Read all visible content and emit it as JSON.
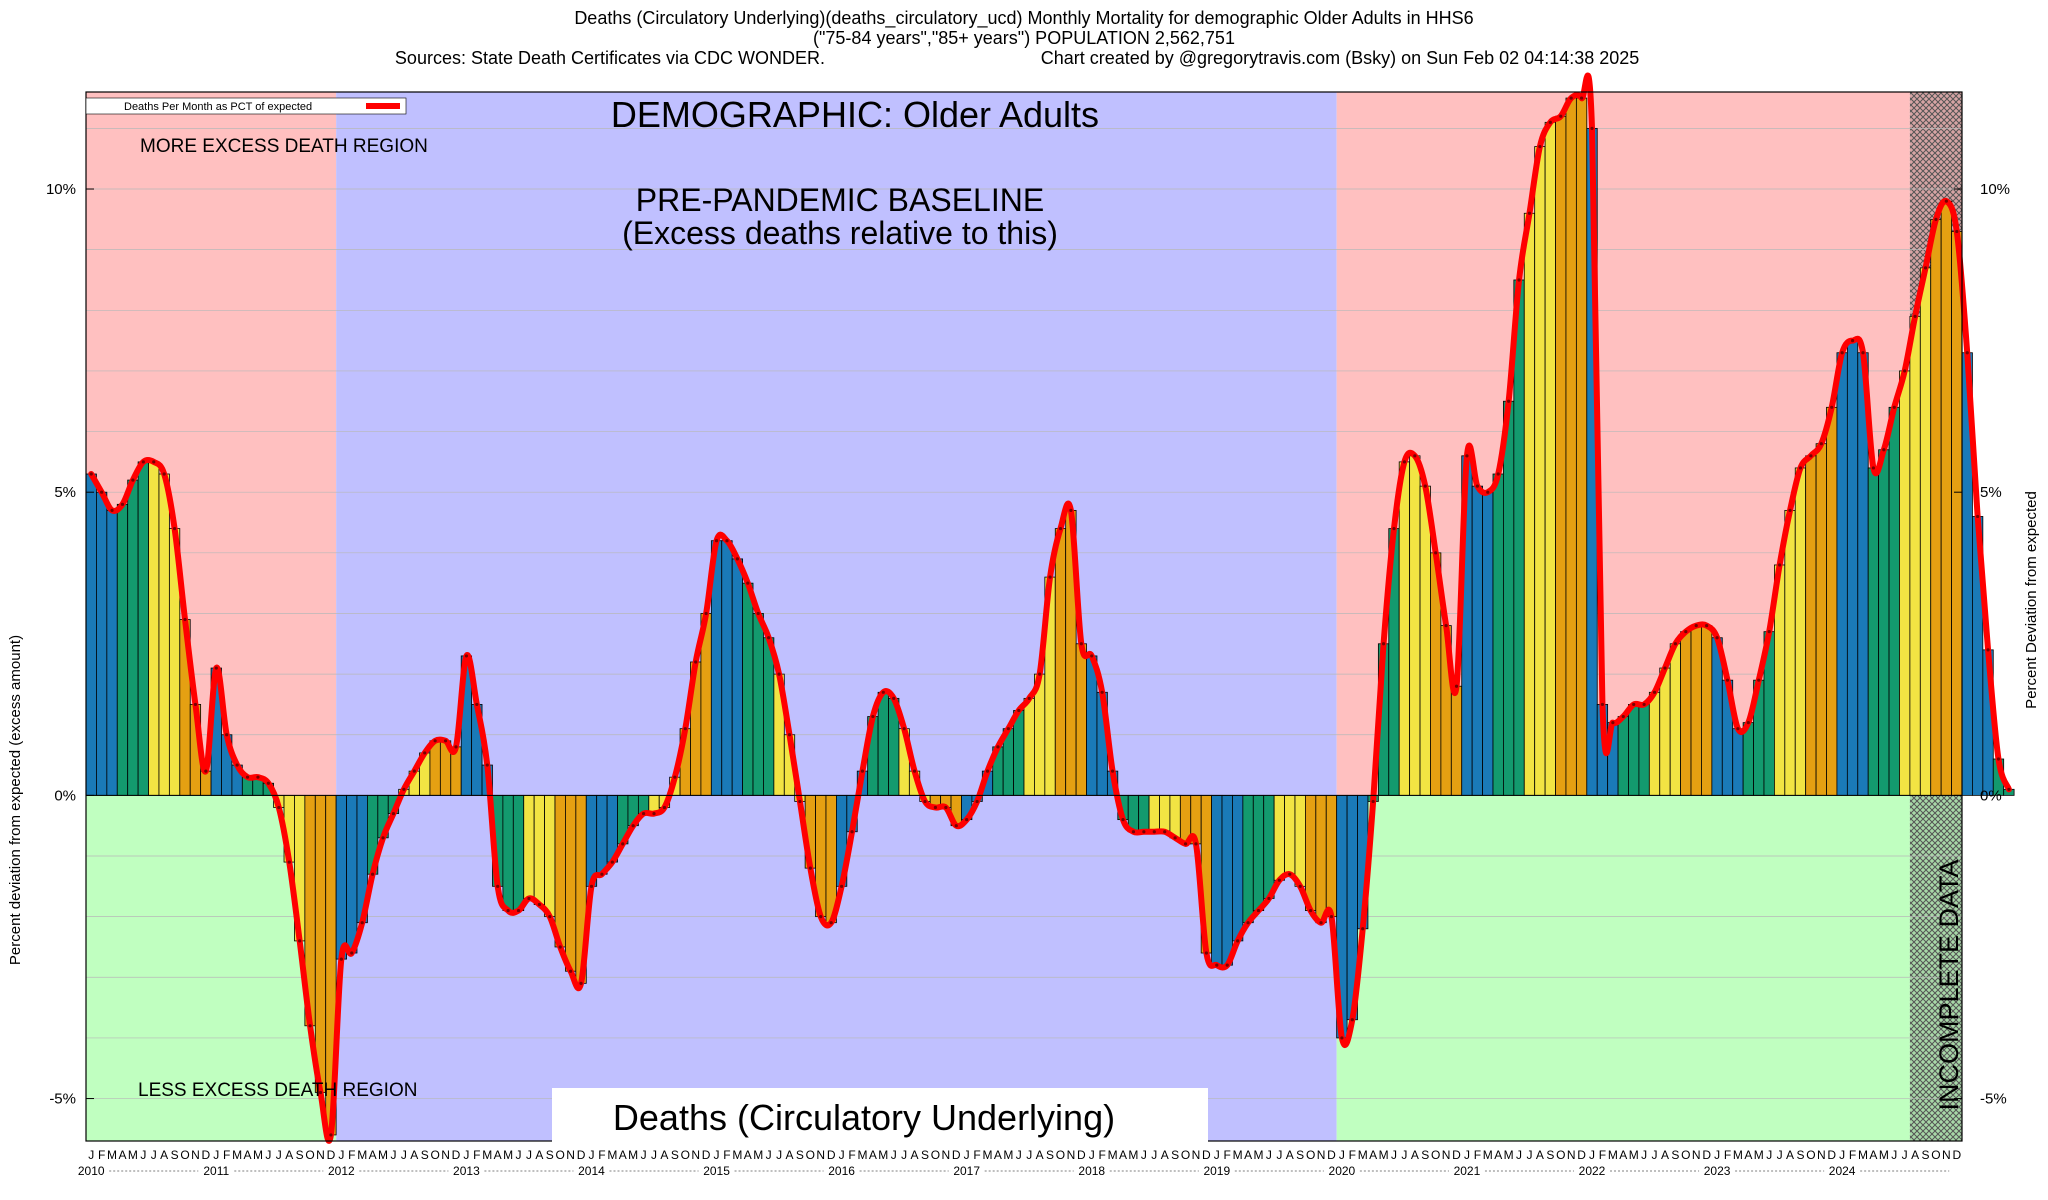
{
  "header": {
    "line1": "Deaths (Circulatory Underlying)(deaths_circulatory_ucd) Monthly Mortality for demographic Older Adults in HHS6",
    "line2": "(\"75-84 years\",\"85+ years\") POPULATION 2,562,751",
    "line3a": "Sources: State Death Certificates via CDC WONDER.",
    "line3b": "Chart created by @gregorytravis.com (Bsky) on Sun Feb 02 04:14:38 2025"
  },
  "labels": {
    "more_excess": "MORE EXCESS DEATH REGION",
    "less_excess": "LESS EXCESS DEATH REGION",
    "demographic": "DEMOGRAPHIC: Older Adults",
    "baseline_1": "PRE-PANDEMIC BASELINE",
    "baseline_2": "(Excess deaths relative to this)",
    "bottom_title": "Deaths (Circulatory Underlying)",
    "incomplete": "INCOMPLETE DATA",
    "legend": "Deaths Per Month as PCT of expected"
  },
  "colors": {
    "more_region": "#ffc0c0",
    "less_region": "#c0ffc0",
    "baseline_region": "#c0c0ff",
    "line": "#ff0000",
    "winter": "#1a7ab8",
    "spring": "#139a6e",
    "summer": "#f2e443",
    "fall": "#e5a012"
  },
  "chart_data": {
    "type": "bar",
    "title": "Deaths (Circulatory Underlying)(deaths_circulatory_ucd) Monthly Mortality for demographic Older Adults in HHS6",
    "ylabel": "Percent deviation from expected (excess amount)",
    "ylabel_right": "Percent Deviation from expected",
    "ylim": [
      -5.7,
      11.6
    ],
    "yticks": [
      "-5%",
      "0%",
      "5%",
      "10%"
    ],
    "ytick_values": [
      -5,
      0,
      5,
      10
    ],
    "start": "2010-01",
    "years": [
      "2010",
      "2011",
      "2012",
      "2013",
      "2014",
      "2015",
      "2016",
      "2017",
      "2018",
      "2019",
      "2020",
      "2021",
      "2022",
      "2023",
      "2024"
    ],
    "month_letters": [
      "J",
      "F",
      "M",
      "A",
      "M",
      "J",
      "J",
      "A",
      "S",
      "O",
      "N",
      "D"
    ],
    "baseline_period": [
      "2012-01",
      "2019-12"
    ],
    "incomplete_from": "2024-08",
    "legend_position": "top-left",
    "grid": true,
    "series": [
      {
        "name": "Deaths Per Month as PCT of expected",
        "values": [
          5.3,
          5.0,
          4.7,
          4.8,
          5.2,
          5.5,
          5.5,
          5.3,
          4.4,
          2.9,
          1.5,
          0.4,
          2.1,
          1.0,
          0.5,
          0.3,
          0.3,
          0.2,
          -0.2,
          -1.1,
          -2.4,
          -3.8,
          -4.9,
          -5.6,
          -2.7,
          -2.6,
          -2.1,
          -1.3,
          -0.7,
          -0.3,
          0.1,
          0.4,
          0.7,
          0.9,
          0.9,
          0.8,
          2.3,
          1.5,
          0.5,
          -1.5,
          -1.9,
          -1.9,
          -1.7,
          -1.8,
          -2.0,
          -2.5,
          -2.9,
          -3.1,
          -1.5,
          -1.3,
          -1.1,
          -0.8,
          -0.5,
          -0.3,
          -0.3,
          -0.2,
          0.3,
          1.1,
          2.2,
          3.0,
          4.2,
          4.2,
          3.9,
          3.5,
          3.0,
          2.6,
          2.0,
          1.0,
          -0.1,
          -1.2,
          -2.0,
          -2.1,
          -1.5,
          -0.6,
          0.4,
          1.3,
          1.7,
          1.6,
          1.1,
          0.4,
          -0.1,
          -0.2,
          -0.2,
          -0.5,
          -0.4,
          -0.1,
          0.4,
          0.8,
          1.1,
          1.4,
          1.6,
          2.0,
          3.6,
          4.4,
          4.7,
          2.5,
          2.3,
          1.7,
          0.4,
          -0.4,
          -0.6,
          -0.6,
          -0.6,
          -0.6,
          -0.7,
          -0.8,
          -0.8,
          -2.6,
          -2.8,
          -2.8,
          -2.4,
          -2.1,
          -1.9,
          -1.7,
          -1.4,
          -1.3,
          -1.5,
          -1.9,
          -2.1,
          -2.0,
          -4.0,
          -3.7,
          -2.2,
          -0.1,
          2.5,
          4.4,
          5.5,
          5.6,
          5.1,
          4.0,
          2.8,
          1.8,
          5.6,
          5.1,
          5.0,
          5.3,
          6.5,
          8.5,
          9.6,
          10.7,
          11.1,
          11.2,
          11.5,
          11.5,
          11.0,
          1.5,
          1.2,
          1.3,
          1.5,
          1.5,
          1.7,
          2.1,
          2.5,
          2.7,
          2.8,
          2.8,
          2.6,
          1.9,
          1.1,
          1.2,
          1.9,
          2.7,
          3.8,
          4.7,
          5.4,
          5.6,
          5.8,
          6.4,
          7.3,
          7.5,
          7.3,
          5.4,
          5.7,
          6.4,
          7.0,
          7.9,
          8.7,
          9.5,
          9.8,
          9.3,
          7.3,
          4.6,
          2.4,
          0.6,
          0.1
        ]
      }
    ]
  }
}
